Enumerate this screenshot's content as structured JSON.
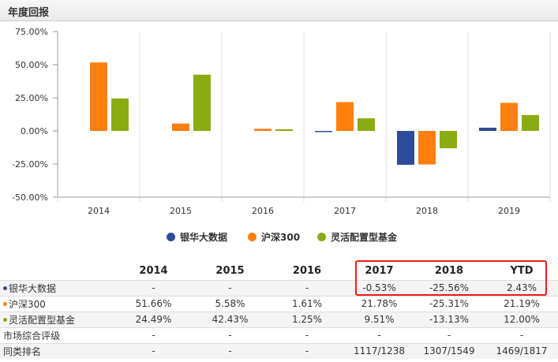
{
  "panel": {
    "title": "年度回报"
  },
  "chart_data": {
    "type": "bar",
    "categories": [
      "2014",
      "2015",
      "2016",
      "2017",
      "2018",
      "2019"
    ],
    "series": [
      {
        "name": "银华大数据",
        "color": "#2e4b9a",
        "values": [
          null,
          null,
          null,
          -0.53,
          -25.56,
          2.43
        ]
      },
      {
        "name": "沪深300",
        "color": "#ff7f0e",
        "values": [
          51.66,
          5.58,
          1.61,
          21.78,
          -25.31,
          21.19
        ]
      },
      {
        "name": "灵活配置型基金",
        "color": "#8aac10",
        "values": [
          24.49,
          42.43,
          1.25,
          9.51,
          -13.13,
          12.0
        ]
      }
    ],
    "yticks": [
      "75.00%",
      "50.00%",
      "25.00%",
      "0.00%",
      "-25.00%",
      "-50.00%"
    ],
    "ylim": [
      -50,
      75
    ],
    "grid": "vertical",
    "legend_position": "bottom"
  },
  "table": {
    "headers": [
      "",
      "2014",
      "2015",
      "2016",
      "2017",
      "2018",
      "YTD"
    ],
    "rows": [
      {
        "label": "银华大数据",
        "bullet_color": "#2e4b9a",
        "cells": [
          "-",
          "-",
          "-",
          "-0.53%",
          "-25.56%",
          "2.43%"
        ]
      },
      {
        "label": "沪深300",
        "bullet_color": "#ff7f0e",
        "cells": [
          "51.66%",
          "5.58%",
          "1.61%",
          "21.78%",
          "-25.31%",
          "21.19%"
        ]
      },
      {
        "label": "灵活配置型基金",
        "bullet_color": "#8aac10",
        "cells": [
          "24.49%",
          "42.43%",
          "1.25%",
          "9.51%",
          "-13.13%",
          "12.00%"
        ]
      },
      {
        "label": "市场综合评级",
        "bullet_color": null,
        "cells": [
          "-",
          "-",
          "-",
          "-",
          "-",
          "-"
        ]
      },
      {
        "label": "同类排名",
        "bullet_color": null,
        "cells": [
          "-",
          "-",
          "-",
          "1117/1238",
          "1307/1549",
          "1469/1817"
        ]
      }
    ]
  }
}
